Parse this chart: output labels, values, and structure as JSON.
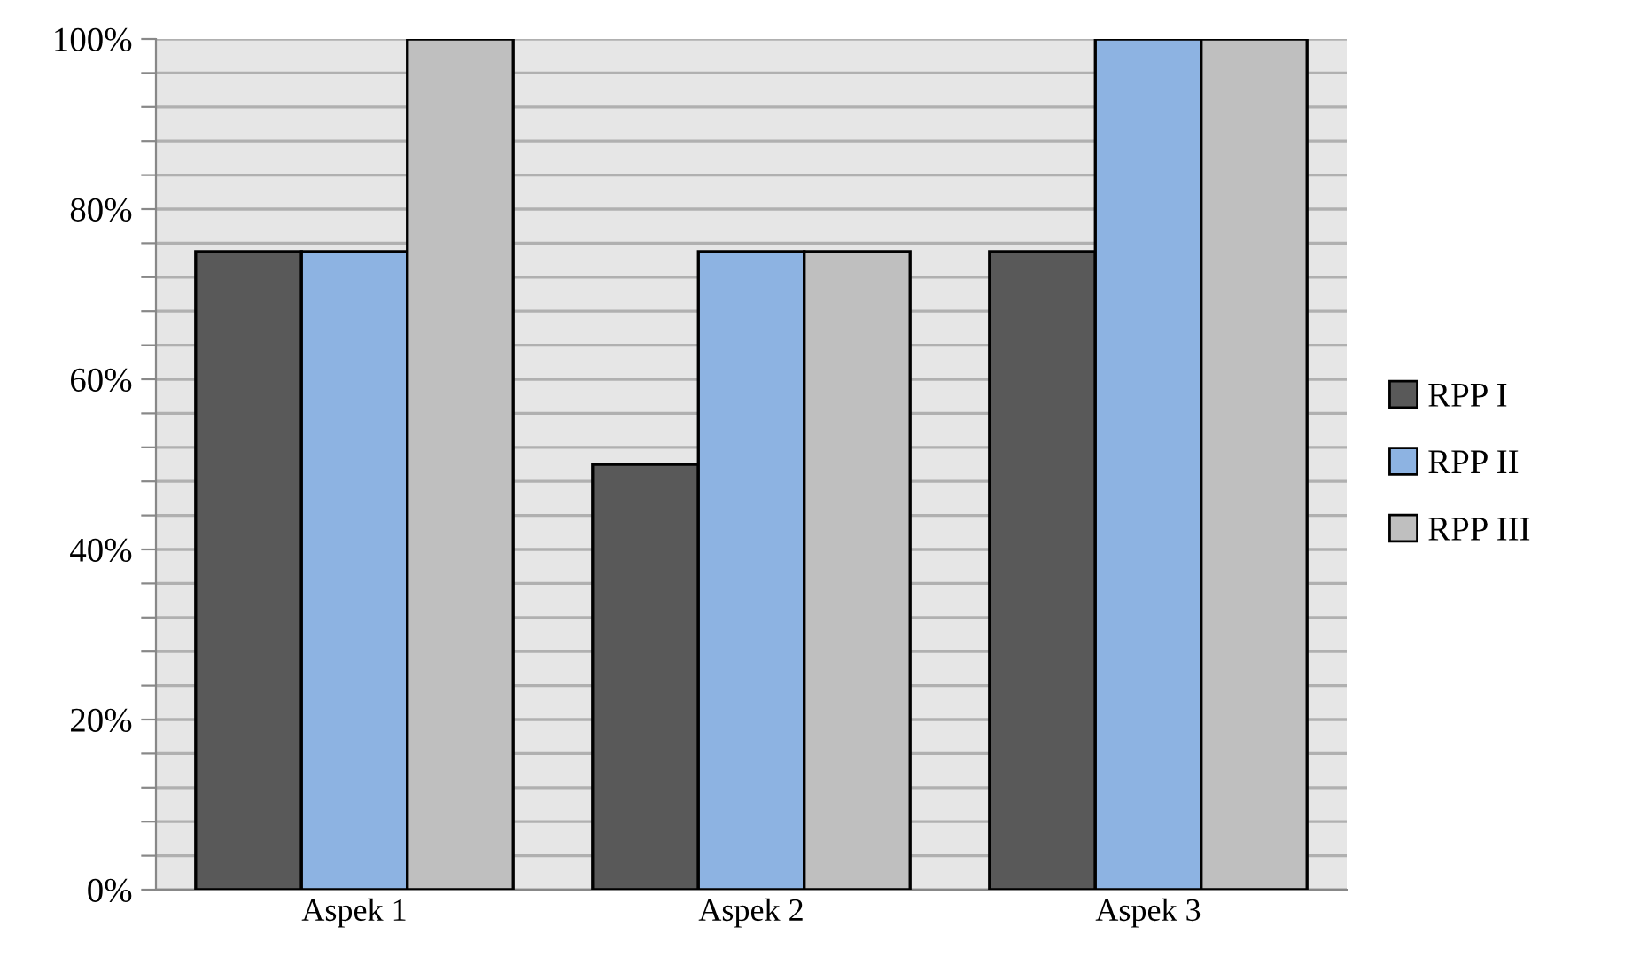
{
  "chart_data": {
    "type": "bar",
    "categories": [
      "Aspek 1",
      "Aspek 2",
      "Aspek 3"
    ],
    "series": [
      {
        "name": "RPP I",
        "color": "#595959",
        "values": [
          75,
          50,
          75
        ]
      },
      {
        "name": "RPP II",
        "color": "#8db3e2",
        "values": [
          75,
          75,
          100
        ]
      },
      {
        "name": "RPP III",
        "color": "#bfbfbf",
        "values": [
          100,
          75,
          100
        ]
      }
    ],
    "ylim": [
      0,
      100
    ],
    "yticks": [
      {
        "value": 0,
        "label": "0%"
      },
      {
        "value": 4,
        "label": null
      },
      {
        "value": 8,
        "label": null
      },
      {
        "value": 12,
        "label": null
      },
      {
        "value": 16,
        "label": null
      },
      {
        "value": 20,
        "label": "20%"
      },
      {
        "value": 24,
        "label": null
      },
      {
        "value": 28,
        "label": null
      },
      {
        "value": 32,
        "label": null
      },
      {
        "value": 36,
        "label": null
      },
      {
        "value": 40,
        "label": "40%"
      },
      {
        "value": 44,
        "label": null
      },
      {
        "value": 48,
        "label": null
      },
      {
        "value": 52,
        "label": null
      },
      {
        "value": 56,
        "label": null
      },
      {
        "value": 60,
        "label": "60%"
      },
      {
        "value": 64,
        "label": null
      },
      {
        "value": 68,
        "label": null
      },
      {
        "value": 72,
        "label": null
      },
      {
        "value": 76,
        "label": null
      },
      {
        "value": 80,
        "label": "80%"
      },
      {
        "value": 84,
        "label": null
      },
      {
        "value": 88,
        "label": null
      },
      {
        "value": 92,
        "label": null
      },
      {
        "value": 96,
        "label": null
      },
      {
        "value": 100,
        "label": "100%"
      }
    ],
    "grid": "y",
    "legend": "right"
  }
}
